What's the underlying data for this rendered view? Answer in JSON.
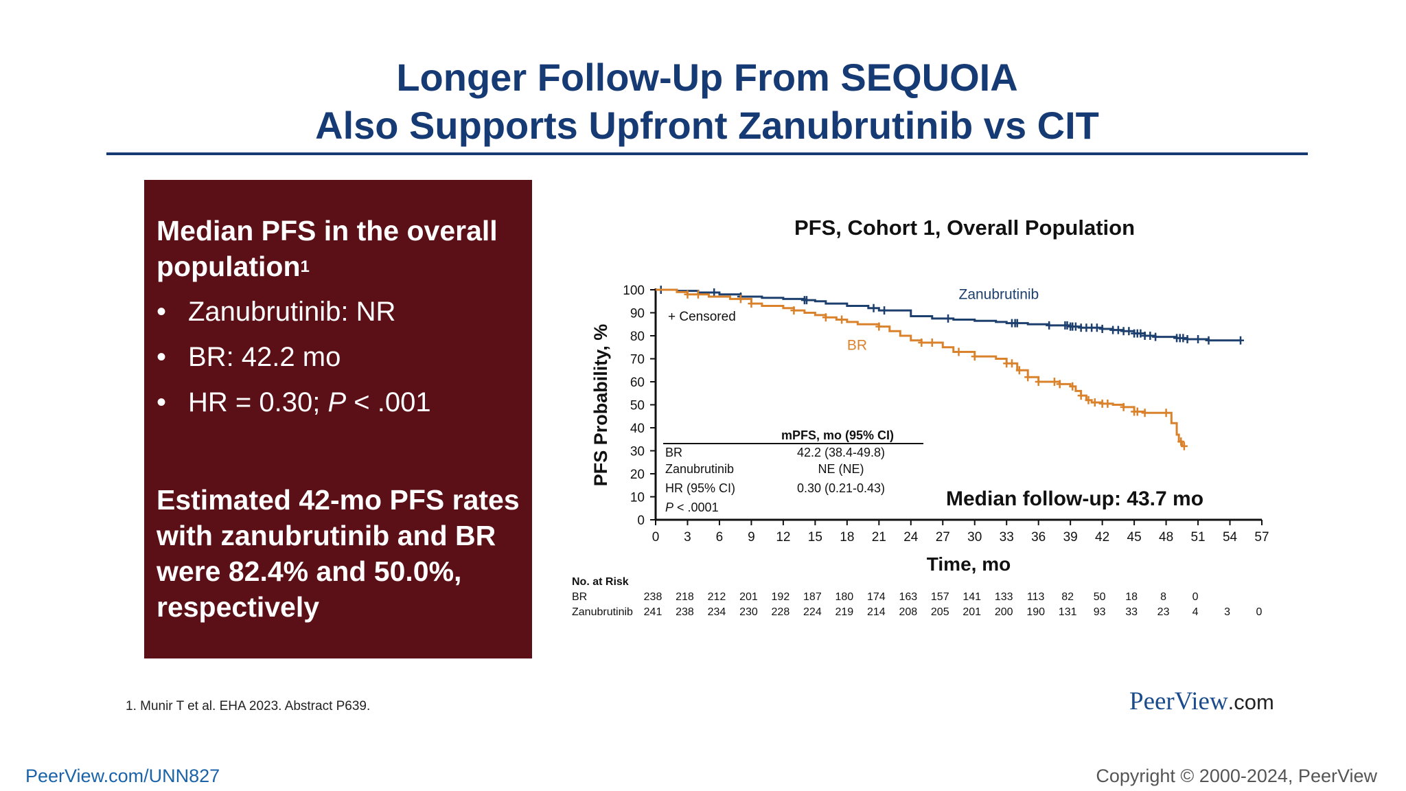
{
  "slide": {
    "title_line1": "Longer Follow-Up From SEQUOIA",
    "title_line2": "Also Supports Upfront Zanubrutinib vs CIT"
  },
  "panel": {
    "heading": "Median PFS in the overall population",
    "heading_sup": "1",
    "bullets": [
      {
        "text": "Zanubrutinib: NR"
      },
      {
        "text": "BR: 42.2 mo"
      },
      {
        "pre": "HR = 0.30; ",
        "italic": "P",
        "post": " < .001"
      }
    ],
    "bullet_glyph": "•",
    "footer": "Estimated 42-mo PFS rates with zanubrutinib and BR were 82.4% and 50.0%, respectively"
  },
  "footnote": "1. Munir T et al. EHA 2023. Abstract P639.",
  "brand": {
    "name": "PeerView",
    "suffix": ".com"
  },
  "link": "PeerView.com/UNN827",
  "copyright": "Copyright © 2000-2024, PeerView",
  "chart_data": {
    "type": "line",
    "step": true,
    "title": "PFS, Cohort 1, Overall Population",
    "xlabel": "Time, mo",
    "ylabel": "PFS Probability, %",
    "xlim": [
      0,
      57
    ],
    "ylim": [
      0,
      100
    ],
    "x_ticks": [
      0,
      3,
      6,
      9,
      12,
      15,
      18,
      21,
      24,
      27,
      30,
      33,
      36,
      39,
      42,
      45,
      48,
      51,
      54,
      57
    ],
    "y_ticks": [
      0,
      10,
      20,
      30,
      40,
      50,
      60,
      70,
      80,
      90,
      100
    ],
    "grid": false,
    "censor_legend": "+ Censored",
    "series": [
      {
        "name": "Zanubrutinib",
        "color": "#1d3f6e",
        "points": [
          [
            0,
            100
          ],
          [
            2,
            99.5
          ],
          [
            4,
            98.8
          ],
          [
            6,
            98
          ],
          [
            8,
            97
          ],
          [
            10,
            96.5
          ],
          [
            12,
            96
          ],
          [
            14,
            95.5
          ],
          [
            15,
            95
          ],
          [
            16,
            94
          ],
          [
            18,
            93
          ],
          [
            20,
            92
          ],
          [
            21,
            91
          ],
          [
            24,
            88.5
          ],
          [
            26,
            87.5
          ],
          [
            28,
            87
          ],
          [
            30,
            86.5
          ],
          [
            32,
            86
          ],
          [
            33,
            85.5
          ],
          [
            35,
            85
          ],
          [
            37,
            84.5
          ],
          [
            39,
            84
          ],
          [
            40,
            83.5
          ],
          [
            42,
            83
          ],
          [
            43,
            82.5
          ],
          [
            44,
            82
          ],
          [
            45,
            81
          ],
          [
            46,
            80
          ],
          [
            47,
            79.5
          ],
          [
            49,
            79
          ],
          [
            50,
            78.5
          ],
          [
            52,
            78
          ],
          [
            55,
            78
          ]
        ],
        "censored_x": [
          0.5,
          5.5,
          8,
          14,
          14.2,
          20.5,
          21.5,
          27.5,
          33.5,
          33.8,
          34,
          37,
          38.5,
          38.7,
          39,
          39.2,
          39.5,
          40,
          40.5,
          41,
          41.5,
          42,
          43,
          43.5,
          44,
          44.5,
          45,
          45.3,
          45.6,
          46,
          46.5,
          47,
          49,
          49.3,
          49.6,
          50,
          51,
          52,
          55
        ]
      },
      {
        "name": "BR",
        "color": "#d9822b",
        "points": [
          [
            0,
            100
          ],
          [
            2,
            99
          ],
          [
            3,
            98
          ],
          [
            5,
            97
          ],
          [
            7,
            96
          ],
          [
            9,
            94
          ],
          [
            10,
            93
          ],
          [
            12,
            92
          ],
          [
            13,
            91
          ],
          [
            14,
            90
          ],
          [
            15,
            89
          ],
          [
            16,
            88
          ],
          [
            17,
            87
          ],
          [
            18,
            86
          ],
          [
            19,
            85
          ],
          [
            21,
            84
          ],
          [
            22,
            82
          ],
          [
            23,
            80
          ],
          [
            24,
            78
          ],
          [
            25,
            77
          ],
          [
            27,
            75
          ],
          [
            28,
            73
          ],
          [
            30,
            71
          ],
          [
            32,
            70
          ],
          [
            33,
            68
          ],
          [
            34,
            65
          ],
          [
            35,
            62
          ],
          [
            36,
            60
          ],
          [
            38,
            59
          ],
          [
            39,
            58
          ],
          [
            39.5,
            56
          ],
          [
            40,
            54
          ],
          [
            40.5,
            52
          ],
          [
            41,
            51
          ],
          [
            42,
            50.5
          ],
          [
            43,
            50
          ],
          [
            44,
            49
          ],
          [
            45,
            47
          ],
          [
            46,
            46.5
          ],
          [
            47,
            46.5
          ],
          [
            48,
            46.5
          ],
          [
            48.5,
            42
          ],
          [
            49,
            37
          ],
          [
            49.2,
            34
          ],
          [
            49.5,
            32
          ]
        ],
        "censored_x": [
          3,
          4,
          8,
          9,
          13,
          16,
          17.5,
          21,
          25,
          26,
          28.5,
          30,
          33,
          33.5,
          34.2,
          35,
          36,
          37.5,
          38,
          39.2,
          40,
          40.7,
          41.3,
          42,
          42.5,
          44,
          45,
          45.3,
          46,
          48,
          49.4,
          49.7
        ]
      }
    ],
    "series_labels": [
      {
        "series": "Zanubrutinib",
        "text": "Zanubrutinib",
        "x": 28.5,
        "y": 98
      },
      {
        "series": "BR",
        "text": "BR",
        "x": 18,
        "y": 76
      }
    ],
    "annotation": "Median follow-up: 43.7 mo",
    "inset_table": {
      "header": "mPFS, mo (95% CI)",
      "rows": [
        {
          "label": "BR",
          "value": "42.2 (38.4-49.8)"
        },
        {
          "label": "Zanubrutinib",
          "value": "NE (NE)"
        },
        {
          "label": "HR (95% CI)",
          "value": "0.30 (0.21-0.43)"
        }
      ],
      "p_italic": "P",
      "p_rest": " < .0001"
    },
    "risk_table": {
      "title": "No. at Risk",
      "rows": [
        {
          "label": "BR",
          "values": [
            "238",
            "218",
            "212",
            "201",
            "192",
            "187",
            "180",
            "174",
            "163",
            "157",
            "141",
            "133",
            "113",
            "82",
            "50",
            "18",
            "8",
            "0"
          ]
        },
        {
          "label": "Zanubrutinib",
          "values": [
            "241",
            "238",
            "234",
            "230",
            "228",
            "224",
            "219",
            "214",
            "208",
            "205",
            "201",
            "200",
            "190",
            "131",
            "93",
            "33",
            "23",
            "4",
            "3",
            "0"
          ]
        }
      ]
    }
  }
}
